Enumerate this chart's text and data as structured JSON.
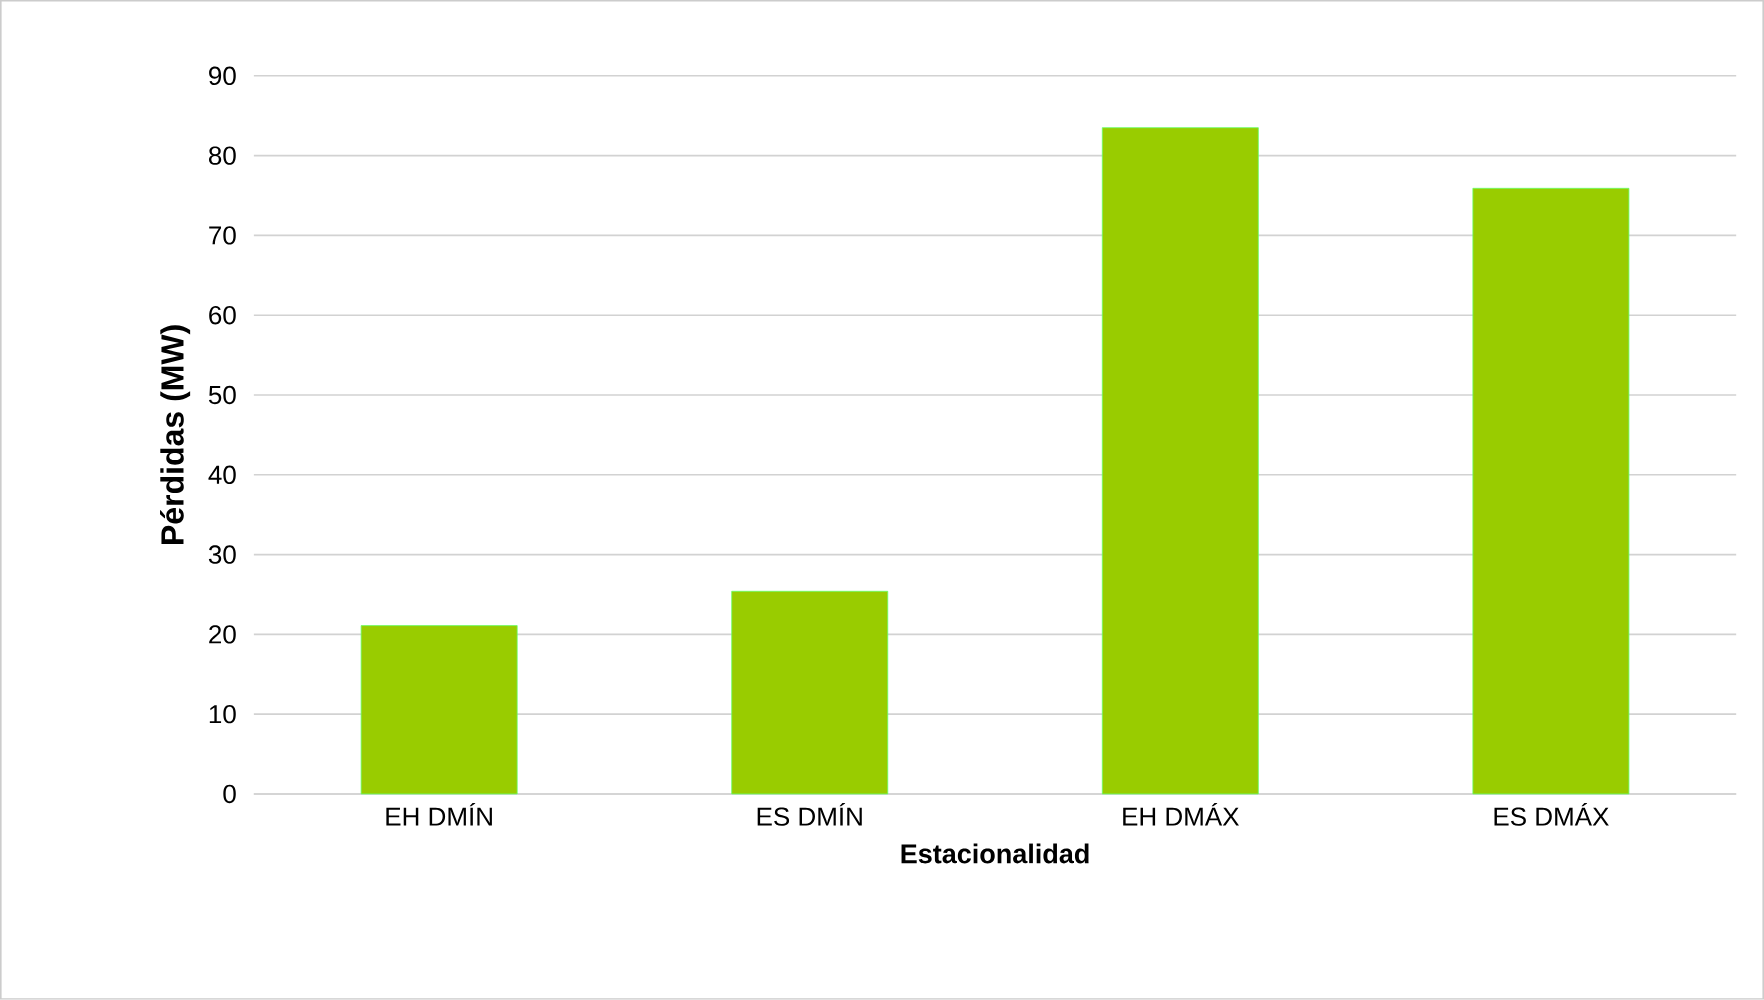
{
  "chart_data": {
    "type": "bar",
    "xlabel": "Estacionalidad",
    "ylabel": "Pérdidas (MW)",
    "categories": [
      "EH DMÍN",
      "ES DMÍN",
      "EH DMÁX",
      "ES DMÁX"
    ],
    "values": [
      21.1,
      25.4,
      83.5,
      75.9
    ],
    "color": "#99cc00",
    "ylim": [
      0,
      90
    ],
    "yticks": [
      0,
      10,
      20,
      30,
      40,
      50,
      60,
      70,
      80,
      90
    ],
    "grid": "y"
  }
}
